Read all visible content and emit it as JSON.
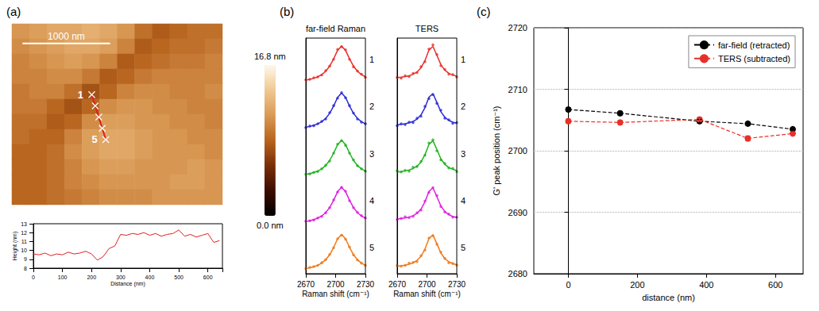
{
  "chart_data": [
    {
      "type": "heatmap",
      "panel_label": "(a)",
      "xlim": [
        0,
        2400
      ],
      "ylim": [
        0,
        2400
      ],
      "tick_labels": false,
      "cells": [
        [
          11,
          11.5,
          12,
          12,
          12.5,
          12,
          11,
          9,
          8,
          8.5,
          9,
          9
        ],
        [
          10.5,
          11,
          11.5,
          12,
          12,
          11.5,
          10,
          8,
          8.5,
          9,
          9,
          9.5
        ],
        [
          10,
          10.5,
          11,
          11.5,
          11,
          10,
          8,
          8.5,
          9,
          9.5,
          9.5,
          10
        ],
        [
          10,
          10,
          10.5,
          10.5,
          9.5,
          8,
          8.5,
          9.5,
          10,
          10,
          10,
          10
        ],
        [
          9.5,
          10,
          10,
          9,
          7.5,
          8.5,
          10,
          10.5,
          10.5,
          10,
          10,
          10.5
        ],
        [
          9.5,
          9.5,
          8.5,
          7.5,
          8.5,
          10.5,
          11,
          11,
          10.5,
          10.5,
          10,
          10
        ],
        [
          9,
          9,
          8,
          8.5,
          10.5,
          11.5,
          11.5,
          11,
          11,
          10.5,
          10.5,
          10
        ],
        [
          9,
          8.5,
          8.5,
          10,
          11.5,
          12,
          12,
          11.5,
          11,
          11,
          10.5,
          10.5
        ],
        [
          8.5,
          8.5,
          9,
          10.5,
          11.5,
          12,
          12,
          11.5,
          11,
          11,
          11,
          10.5
        ],
        [
          8.5,
          8.5,
          9,
          10,
          11,
          11.5,
          11.5,
          11,
          11,
          11,
          11.5,
          11
        ],
        [
          8.5,
          8.5,
          9,
          10,
          10.5,
          11,
          11,
          11,
          11,
          11.5,
          11.5,
          11
        ],
        [
          8.5,
          8.5,
          9,
          9.5,
          10,
          10.5,
          10.5,
          10.5,
          11,
          11,
          11,
          11
        ]
      ],
      "colorbar": {
        "range": [
          0,
          16.8
        ],
        "ticks": [
          {
            "value": 0,
            "label": "0.0 nm"
          },
          {
            "value": 16.8,
            "label": "16.8 nm"
          }
        ]
      },
      "scale_bar": {
        "length": 1000,
        "label": "1000 nm"
      },
      "profile_line": {
        "color": "#e02020",
        "marker": "x",
        "points": [
          {
            "x": 910,
            "y": 940,
            "label": "1"
          },
          {
            "x": 950,
            "y": 1089
          },
          {
            "x": 990,
            "y": 1238
          },
          {
            "x": 1030,
            "y": 1387
          },
          {
            "x": 1070,
            "y": 1536,
            "label": "5"
          }
        ]
      }
    },
    {
      "type": "line",
      "x_label": "Distance (nm)",
      "y_label": "Height (nm)",
      "color": "#e02020",
      "grid": false,
      "x": [
        0,
        20,
        40,
        60,
        80,
        100,
        120,
        140,
        160,
        180,
        200,
        220,
        240,
        260,
        280,
        300,
        320,
        340,
        360,
        380,
        400,
        420,
        440,
        460,
        480,
        500,
        520,
        540,
        560,
        580,
        600,
        620,
        640
      ],
      "values": [
        9.6,
        9.5,
        9.7,
        9.4,
        9.6,
        9.5,
        9.8,
        9.6,
        9.7,
        9.9,
        9.6,
        8.9,
        9.3,
        10.2,
        10.5,
        11.8,
        11.7,
        11.9,
        11.8,
        12.0,
        11.7,
        11.9,
        11.6,
        11.8,
        11.9,
        12.3,
        11.6,
        11.8,
        11.5,
        11.7,
        11.9,
        10.9,
        11.1
      ],
      "xlim": [
        0,
        650
      ],
      "xticks": [
        0,
        100,
        200,
        300,
        400,
        500,
        600
      ],
      "ylim": [
        8,
        13
      ],
      "yticks": [
        8,
        9,
        10,
        11,
        12,
        13
      ]
    },
    {
      "type": "line",
      "panel_label": "(b)",
      "title": "far-field Raman",
      "x_label": "Raman shift (cm⁻¹)",
      "marker": "circle",
      "tick_labels": "x",
      "x": [
        2670,
        2674,
        2678,
        2682,
        2686,
        2690,
        2694,
        2698,
        2702,
        2706,
        2710,
        2714,
        2718,
        2722,
        2726,
        2730
      ],
      "xlim": [
        2670,
        2730
      ],
      "xticks": [
        2670,
        2700,
        2730
      ],
      "ylim": [
        0,
        1.2
      ],
      "series": [
        {
          "name": "1",
          "color": "#e8302a",
          "values": [
            0.14,
            0.15,
            0.19,
            0.21,
            0.26,
            0.37,
            0.49,
            0.66,
            0.91,
            0.98,
            0.9,
            0.66,
            0.47,
            0.36,
            0.28,
            0.2
          ],
          "fit": [
            0.131,
            0.15,
            0.177,
            0.215,
            0.27,
            0.355,
            0.484,
            0.671,
            0.889,
            1.0,
            0.889,
            0.671,
            0.484,
            0.355,
            0.27,
            0.215
          ]
        },
        {
          "name": "2",
          "color": "#2b2bd6",
          "values": [
            0.12,
            0.16,
            0.17,
            0.22,
            0.28,
            0.34,
            0.5,
            0.68,
            0.87,
            1.01,
            0.88,
            0.68,
            0.49,
            0.34,
            0.26,
            0.22
          ],
          "fit": [
            0.131,
            0.15,
            0.177,
            0.215,
            0.27,
            0.355,
            0.484,
            0.671,
            0.889,
            1.0,
            0.889,
            0.671,
            0.484,
            0.355,
            0.27,
            0.215
          ]
        },
        {
          "name": "3",
          "color": "#1fb21f",
          "values": [
            0.13,
            0.14,
            0.18,
            0.2,
            0.27,
            0.36,
            0.47,
            0.67,
            0.9,
            0.99,
            0.87,
            0.67,
            0.5,
            0.35,
            0.27,
            0.21
          ],
          "fit": [
            0.131,
            0.15,
            0.177,
            0.215,
            0.27,
            0.355,
            0.484,
            0.671,
            0.889,
            1.0,
            0.889,
            0.671,
            0.484,
            0.355,
            0.27,
            0.215
          ]
        },
        {
          "name": "4",
          "color": "#e020e0",
          "values": [
            0.14,
            0.15,
            0.17,
            0.22,
            0.26,
            0.35,
            0.48,
            0.68,
            0.88,
            1.0,
            0.9,
            0.66,
            0.48,
            0.36,
            0.28,
            0.22
          ],
          "fit": [
            0.131,
            0.15,
            0.177,
            0.215,
            0.27,
            0.355,
            0.484,
            0.671,
            0.889,
            1.0,
            0.889,
            0.671,
            0.484,
            0.355,
            0.27,
            0.215
          ]
        },
        {
          "name": "5",
          "color": "#f07a1a",
          "values": [
            0.13,
            0.16,
            0.18,
            0.21,
            0.28,
            0.36,
            0.49,
            0.66,
            0.89,
            0.98,
            0.88,
            0.68,
            0.48,
            0.35,
            0.27,
            0.21
          ],
          "fit": [
            0.131,
            0.15,
            0.177,
            0.215,
            0.27,
            0.355,
            0.484,
            0.671,
            0.889,
            1.0,
            0.889,
            0.671,
            0.484,
            0.355,
            0.27,
            0.215
          ]
        }
      ]
    },
    {
      "type": "line",
      "title": "TERS",
      "x_label": "Raman shift (cm⁻¹)",
      "marker": "circle",
      "tick_labels": "x",
      "x": [
        2670,
        2674,
        2678,
        2682,
        2686,
        2690,
        2694,
        2698,
        2702,
        2706,
        2710,
        2714,
        2718,
        2722,
        2726,
        2730
      ],
      "xlim": [
        2670,
        2730
      ],
      "xticks": [
        2670,
        2700,
        2730
      ],
      "ylim": [
        0,
        1.2
      ],
      "series": [
        {
          "name": "1",
          "color": "#e8302a",
          "values": [
            0.2,
            0.18,
            0.24,
            0.22,
            0.3,
            0.32,
            0.47,
            0.6,
            0.92,
            1.03,
            0.78,
            0.5,
            0.4,
            0.28,
            0.27,
            0.21
          ],
          "fit": [
            0.193,
            0.203,
            0.219,
            0.242,
            0.278,
            0.338,
            0.444,
            0.631,
            0.895,
            0.987,
            0.761,
            0.525,
            0.384,
            0.304,
            0.258,
            0.229
          ]
        },
        {
          "name": "2",
          "color": "#2b2bd6",
          "values": [
            0.17,
            0.22,
            0.2,
            0.26,
            0.25,
            0.36,
            0.41,
            0.66,
            0.86,
            0.96,
            0.74,
            0.56,
            0.36,
            0.32,
            0.23,
            0.25
          ],
          "fit": [
            0.193,
            0.203,
            0.219,
            0.242,
            0.278,
            0.338,
            0.444,
            0.631,
            0.895,
            0.987,
            0.761,
            0.525,
            0.384,
            0.304,
            0.258,
            0.229
          ]
        },
        {
          "name": "3",
          "color": "#1fb21f",
          "values": [
            0.22,
            0.19,
            0.23,
            0.21,
            0.31,
            0.33,
            0.46,
            0.62,
            0.93,
            1.01,
            0.73,
            0.5,
            0.41,
            0.29,
            0.28,
            0.2
          ],
          "fit": [
            0.193,
            0.203,
            0.219,
            0.242,
            0.278,
            0.338,
            0.444,
            0.631,
            0.895,
            0.987,
            0.761,
            0.525,
            0.384,
            0.304,
            0.258,
            0.229
          ]
        },
        {
          "name": "4",
          "color": "#e020e0",
          "values": [
            0.18,
            0.21,
            0.25,
            0.23,
            0.26,
            0.35,
            0.42,
            0.65,
            0.87,
            0.99,
            0.79,
            0.51,
            0.37,
            0.32,
            0.24,
            0.24
          ],
          "fit": [
            0.193,
            0.203,
            0.219,
            0.242,
            0.278,
            0.338,
            0.444,
            0.631,
            0.895,
            0.987,
            0.761,
            0.525,
            0.384,
            0.304,
            0.258,
            0.229
          ]
        },
        {
          "name": "5",
          "color": "#f07a1a",
          "values": [
            0.21,
            0.19,
            0.21,
            0.27,
            0.29,
            0.31,
            0.46,
            0.6,
            0.91,
            0.97,
            0.75,
            0.55,
            0.39,
            0.28,
            0.26,
            0.22
          ],
          "fit": [
            0.193,
            0.203,
            0.219,
            0.242,
            0.278,
            0.338,
            0.444,
            0.631,
            0.895,
            0.987,
            0.761,
            0.525,
            0.384,
            0.304,
            0.258,
            0.229
          ]
        }
      ]
    },
    {
      "type": "line",
      "panel_label": "(c)",
      "x_label": "distance (nm)",
      "y_label": "G' peak position (cm⁻¹)",
      "grid": true,
      "legend": "upper right",
      "x": [
        0,
        150,
        380,
        520,
        650
      ],
      "xlim": [
        -100,
        680
      ],
      "xticks": [
        0,
        200,
        400,
        600
      ],
      "ylim": [
        2680,
        2720
      ],
      "yticks": [
        2680,
        2690,
        2700,
        2710,
        2720
      ],
      "series": [
        {
          "name": "far-field (retracted)",
          "color": "#000000",
          "marker": "circle",
          "line_style": "dashed",
          "values": [
            2706.7,
            2706.1,
            2704.8,
            2704.4,
            2703.5
          ],
          "errors": [
            0.3,
            0.3,
            0.3,
            0.25,
            0.3
          ]
        },
        {
          "name": "TERS (subtracted)",
          "color": "#e8302a",
          "marker": "circle",
          "line_style": "dashed",
          "values": [
            2704.8,
            2704.6,
            2705.1,
            2702.0,
            2702.8
          ],
          "errors": [
            0.35,
            0.35,
            0.3,
            0.4,
            0.3
          ]
        }
      ]
    }
  ]
}
